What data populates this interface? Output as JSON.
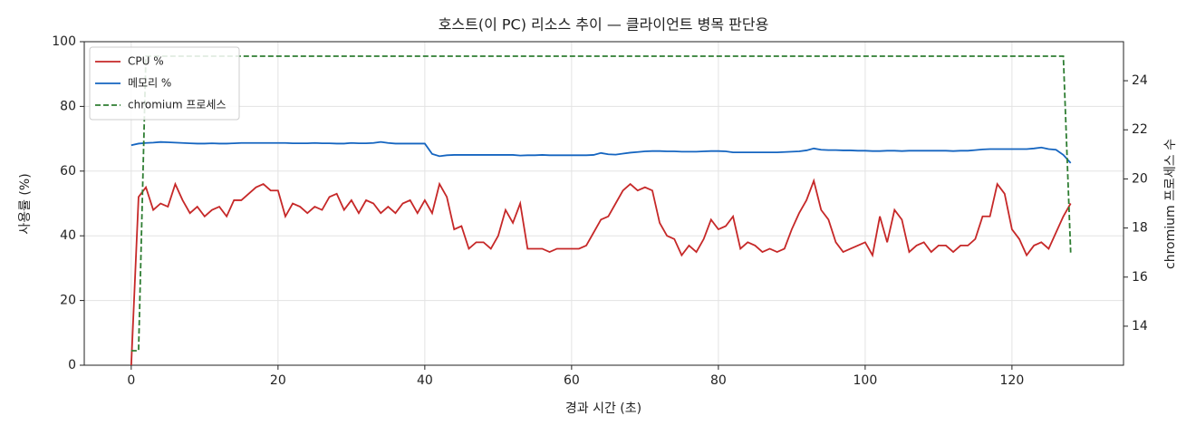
{
  "chart_data": {
    "type": "line",
    "title": "호스트(이 PC) 리소스 추이 — 클라이언트 병목 판단용",
    "xlabel": "경과 시간 (초)",
    "ylabel": "사용률 (%)",
    "y2label": "chromium 프로세스 수",
    "x": [
      0,
      1,
      2,
      3,
      4,
      5,
      6,
      7,
      8,
      9,
      10,
      11,
      12,
      13,
      14,
      15,
      16,
      17,
      18,
      19,
      20,
      21,
      22,
      23,
      24,
      25,
      26,
      27,
      28,
      29,
      30,
      31,
      32,
      33,
      34,
      35,
      36,
      37,
      38,
      39,
      40,
      41,
      42,
      43,
      44,
      45,
      46,
      47,
      48,
      49,
      50,
      51,
      52,
      53,
      54,
      55,
      56,
      57,
      58,
      59,
      60,
      61,
      62,
      63,
      64,
      65,
      66,
      67,
      68,
      69,
      70,
      71,
      72,
      73,
      74,
      75,
      76,
      77,
      78,
      79,
      80,
      81,
      82,
      83,
      84,
      85,
      86,
      87,
      88,
      89,
      90,
      91,
      92,
      93,
      94,
      95,
      96,
      97,
      98,
      99,
      100,
      101,
      102,
      103,
      104,
      105,
      106,
      107,
      108,
      109,
      110,
      111,
      112,
      113,
      114,
      115,
      116,
      117,
      118,
      119,
      120,
      121,
      122,
      123,
      124,
      125,
      126,
      127,
      128
    ],
    "series": [
      {
        "name": "CPU %",
        "color": "#c62828",
        "linestyle": "solid",
        "values": [
          0,
          52,
          55,
          48,
          50,
          49,
          56,
          51,
          47,
          49,
          46,
          48,
          49,
          46,
          51,
          51,
          53,
          55,
          56,
          54,
          54,
          46,
          50,
          49,
          47,
          49,
          48,
          52,
          53,
          48,
          51,
          47,
          51,
          50,
          47,
          49,
          47,
          50,
          51,
          47,
          51,
          47,
          56,
          52,
          42,
          43,
          36,
          38,
          38,
          36,
          40,
          48,
          44,
          50,
          36,
          36,
          36,
          35,
          36,
          36,
          36,
          36,
          37,
          41,
          45,
          46,
          50,
          54,
          56,
          54,
          55,
          54,
          44,
          40,
          39,
          34,
          37,
          35,
          39,
          45,
          42,
          43,
          46,
          36,
          38,
          37,
          35,
          36,
          35,
          36,
          42,
          47,
          51,
          57,
          48,
          45,
          38,
          35,
          36,
          37,
          38,
          34,
          46,
          38,
          48,
          45,
          35,
          37,
          38,
          35,
          37,
          37,
          35,
          37,
          37,
          39,
          46,
          46,
          56,
          53,
          42,
          39,
          34,
          37,
          38,
          36,
          41,
          46,
          50
        ]
      },
      {
        "name": "메모리 %",
        "color": "#1565c0",
        "linestyle": "solid",
        "values": [
          68,
          68.5,
          68.7,
          68.8,
          69,
          68.9,
          68.8,
          68.7,
          68.6,
          68.5,
          68.5,
          68.6,
          68.5,
          68.5,
          68.6,
          68.7,
          68.7,
          68.7,
          68.7,
          68.7,
          68.7,
          68.7,
          68.6,
          68.6,
          68.6,
          68.7,
          68.6,
          68.6,
          68.5,
          68.5,
          68.7,
          68.6,
          68.6,
          68.7,
          69,
          68.7,
          68.5,
          68.5,
          68.5,
          68.5,
          68.5,
          65.3,
          64.6,
          64.9,
          65,
          65,
          65,
          65,
          65,
          65,
          65,
          65,
          65,
          64.8,
          64.9,
          64.9,
          65,
          64.9,
          64.9,
          64.9,
          64.9,
          64.9,
          64.9,
          65,
          65.6,
          65.2,
          65.1,
          65.4,
          65.7,
          65.9,
          66.1,
          66.2,
          66.2,
          66.1,
          66.1,
          66,
          66,
          66,
          66.1,
          66.2,
          66.2,
          66.1,
          65.8,
          65.8,
          65.8,
          65.8,
          65.8,
          65.8,
          65.8,
          65.9,
          66,
          66.1,
          66.4,
          67,
          66.6,
          66.5,
          66.5,
          66.4,
          66.4,
          66.3,
          66.3,
          66.2,
          66.2,
          66.3,
          66.3,
          66.2,
          66.3,
          66.3,
          66.3,
          66.3,
          66.3,
          66.3,
          66.2,
          66.3,
          66.3,
          66.5,
          66.7,
          66.8,
          66.8,
          66.8,
          66.8,
          66.8,
          66.8,
          67,
          67.3,
          66.8,
          66.6,
          65,
          62.5
        ]
      },
      {
        "name": "chromium 프로세스",
        "color": "#2e7d32",
        "linestyle": "dashed",
        "axis": "y2",
        "values": [
          13,
          13,
          25,
          25,
          25,
          25,
          25,
          25,
          25,
          25,
          25,
          25,
          25,
          25,
          25,
          25,
          25,
          25,
          25,
          25,
          25,
          25,
          25,
          25,
          25,
          25,
          25,
          25,
          25,
          25,
          25,
          25,
          25,
          25,
          25,
          25,
          25,
          25,
          25,
          25,
          25,
          25,
          25,
          25,
          25,
          25,
          25,
          25,
          25,
          25,
          25,
          25,
          25,
          25,
          25,
          25,
          25,
          25,
          25,
          25,
          25,
          25,
          25,
          25,
          25,
          25,
          25,
          25,
          25,
          25,
          25,
          25,
          25,
          25,
          25,
          25,
          25,
          25,
          25,
          25,
          25,
          25,
          25,
          25,
          25,
          25,
          25,
          25,
          25,
          25,
          25,
          25,
          25,
          25,
          25,
          25,
          25,
          25,
          25,
          25,
          25,
          25,
          25,
          25,
          25,
          25,
          25,
          25,
          25,
          25,
          25,
          25,
          25,
          25,
          25,
          25,
          25,
          25,
          25,
          25,
          25,
          25,
          25,
          25,
          25,
          25,
          25,
          25,
          17
        ]
      }
    ],
    "xlim": [
      -6.4,
      135.2
    ],
    "xticks": [
      0,
      20,
      40,
      60,
      80,
      100,
      120
    ],
    "ylim": [
      0,
      100
    ],
    "yticks": [
      0,
      20,
      40,
      60,
      80,
      100
    ],
    "y2lim": [
      12.41,
      25.59
    ],
    "y2ticks": [
      14,
      16,
      18,
      20,
      22,
      24
    ],
    "grid": true,
    "legend": "upper left"
  }
}
